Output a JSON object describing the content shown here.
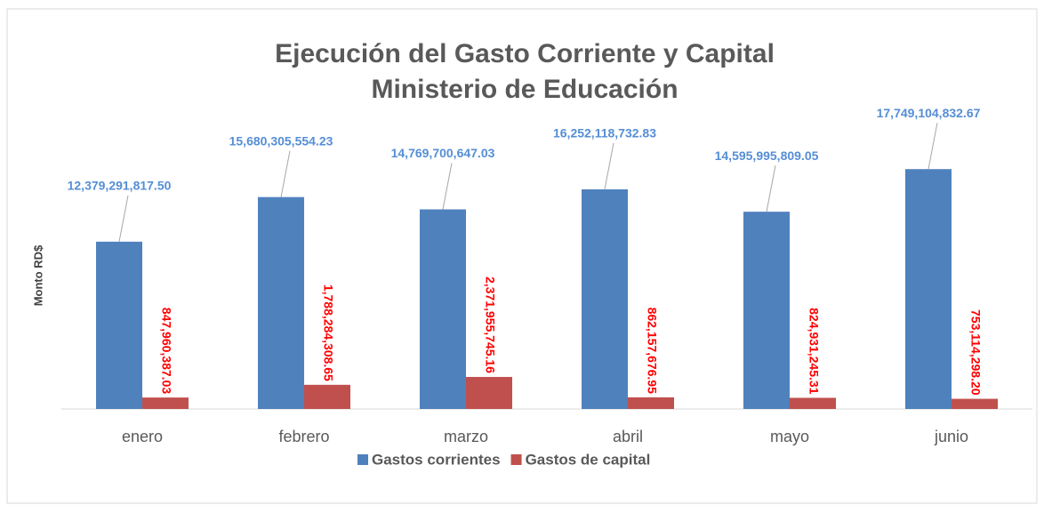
{
  "chart_data": {
    "type": "bar",
    "title": "Ejecución del Gasto Corriente y Capital",
    "subtitle": "Ministerio de Educación",
    "y_label": "Monto RD$",
    "categories": [
      "enero",
      "febrero",
      "marzo",
      "abril",
      "mayo",
      "junio"
    ],
    "series": [
      {
        "name": "Gastos corrientes",
        "color": "#4f81bd",
        "label_color": "#558ed5",
        "values": [
          12379291817.5,
          15680305554.23,
          14769700647.03,
          16252118732.83,
          14595995809.05,
          17749104832.67
        ],
        "value_labels": [
          "12,379,291,817.50",
          "15,680,305,554.23",
          "14,769,700,647.03",
          "16,252,118,732.83",
          "14,595,995,809.05",
          "17,749,104,832.67"
        ]
      },
      {
        "name": "Gastos de capital",
        "color": "#c0504d",
        "label_color": "#ff0000",
        "values": [
          847960387.03,
          1788284308.65,
          2371955745.16,
          862157676.95,
          824931245.31,
          753114298.2
        ],
        "value_labels": [
          "847,960,387.03",
          "1,788,284,308.65",
          "2,371,955,745.16",
          "862,157,676.95",
          "824,931,245.31",
          "753,114,298.20"
        ]
      }
    ],
    "ylim": [
      0,
      20000000000
    ],
    "legend": "bottom"
  }
}
